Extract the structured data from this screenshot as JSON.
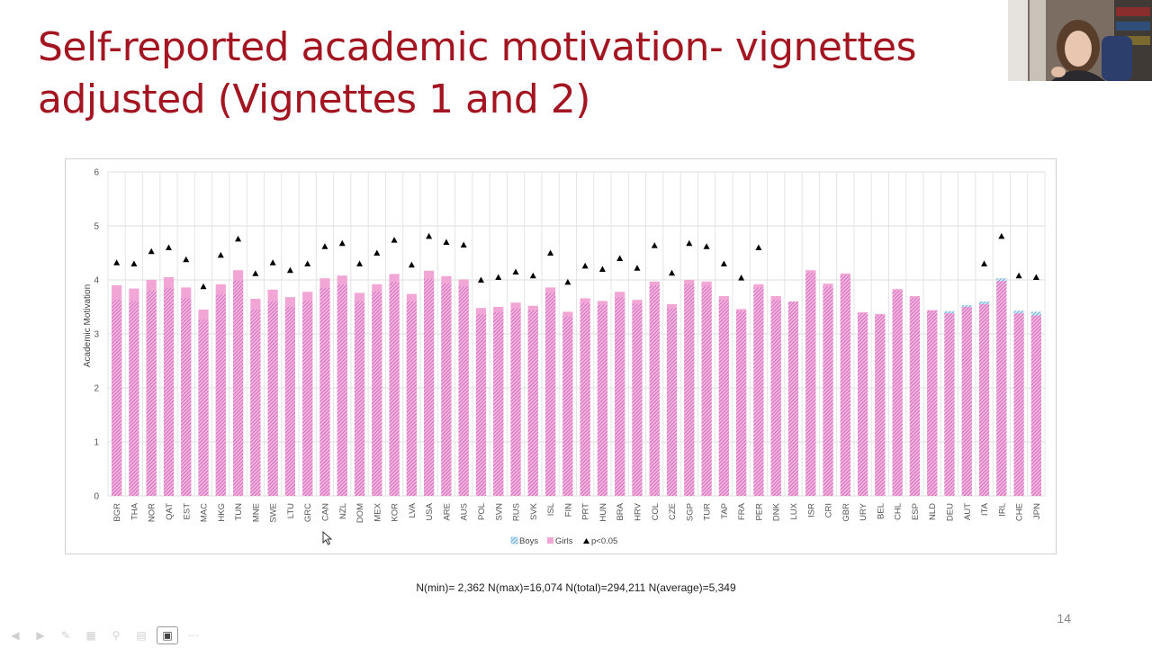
{
  "slide": {
    "title": "Self-reported academic motivation- vignettes adjusted (Vignettes 1 and 2)",
    "footnote": "N(min)= 2,362   N(max)=16,074   N(total)=294,211   N(average)=5,349",
    "page_number": "14"
  },
  "colors": {
    "title": "#a31621",
    "girls": "#f2a6d6",
    "boys_hatch": "#8fc3e6",
    "girls_hatch": "#e070c8",
    "marker": "#000000"
  },
  "toolbar": {
    "icons": [
      "previous-icon",
      "next-icon",
      "pen-icon",
      "slides-icon",
      "zoom-icon",
      "subtitles-icon",
      "camera-icon",
      "more-icon"
    ]
  },
  "chart_data": {
    "type": "bar",
    "ylabel": "Academic Motivation",
    "ylim": [
      0,
      6
    ],
    "yticks": [
      0,
      1,
      2,
      3,
      4,
      5,
      6
    ],
    "grid": true,
    "legend_position": "bottom",
    "legend": {
      "boys": "Boys",
      "girls": "Girls",
      "sig": "p<0.05"
    },
    "categories": [
      "BGR",
      "THA",
      "NOR",
      "QAT",
      "EST",
      "MAC",
      "HKG",
      "TUN",
      "MNE",
      "SWE",
      "LTU",
      "GRC",
      "CAN",
      "NZL",
      "DOM",
      "MEX",
      "KOR",
      "LVA",
      "USA",
      "ARE",
      "AUS",
      "POL",
      "SVN",
      "RUS",
      "SVK",
      "ISL",
      "FIN",
      "PRT",
      "HUN",
      "BRA",
      "HRV",
      "COL",
      "CZE",
      "SGP",
      "TUR",
      "TAP",
      "FRA",
      "PER",
      "DNK",
      "LUX",
      "ISR",
      "CRI",
      "GBR",
      "URY",
      "BEL",
      "CHL",
      "ESP",
      "NLD",
      "DEU",
      "AUT",
      "ITA",
      "IRL",
      "CHE",
      "JPN"
    ],
    "series": [
      {
        "name": "Boys",
        "values": [
          3.63,
          3.61,
          3.8,
          3.85,
          3.66,
          3.26,
          3.73,
          3.99,
          3.45,
          3.6,
          3.5,
          3.61,
          3.85,
          3.91,
          3.6,
          3.78,
          3.96,
          3.6,
          4.02,
          3.93,
          3.88,
          3.37,
          3.4,
          3.47,
          3.44,
          3.76,
          3.32,
          3.57,
          3.54,
          3.68,
          3.56,
          3.9,
          3.47,
          3.92,
          3.89,
          3.63,
          3.42,
          3.86,
          3.63,
          3.6,
          4.13,
          3.87,
          4.08,
          3.38,
          3.35,
          3.8,
          3.67,
          3.43,
          3.42,
          3.53,
          3.6,
          4.03,
          3.43,
          3.41
        ]
      },
      {
        "name": "Girls",
        "values": [
          3.9,
          3.84,
          4.0,
          4.05,
          3.86,
          3.45,
          3.92,
          4.18,
          3.65,
          3.82,
          3.68,
          3.78,
          4.03,
          4.08,
          3.76,
          3.92,
          4.11,
          3.74,
          4.17,
          4.07,
          4.01,
          3.48,
          3.5,
          3.58,
          3.52,
          3.86,
          3.41,
          3.66,
          3.61,
          3.78,
          3.63,
          3.97,
          3.55,
          4.0,
          3.97,
          3.7,
          3.46,
          3.92,
          3.7,
          3.6,
          4.18,
          3.93,
          4.12,
          3.4,
          3.37,
          3.83,
          3.7,
          3.44,
          3.38,
          3.5,
          3.55,
          3.98,
          3.38,
          3.34
        ]
      },
      {
        "name": "p<0.05",
        "values": [
          4.32,
          4.3,
          4.53,
          4.6,
          4.38,
          3.88,
          4.46,
          4.76,
          4.12,
          4.32,
          4.18,
          4.3,
          4.62,
          4.68,
          4.3,
          4.5,
          4.74,
          4.28,
          4.81,
          4.7,
          4.65,
          4.0,
          4.05,
          4.15,
          4.08,
          4.5,
          3.96,
          4.26,
          4.2,
          4.4,
          4.22,
          4.64,
          4.13,
          4.68,
          4.62,
          4.3,
          4.04,
          4.6,
          null,
          null,
          null,
          null,
          null,
          null,
          null,
          null,
          null,
          null,
          null,
          null,
          4.3,
          4.81,
          4.08,
          4.05
        ]
      }
    ]
  }
}
